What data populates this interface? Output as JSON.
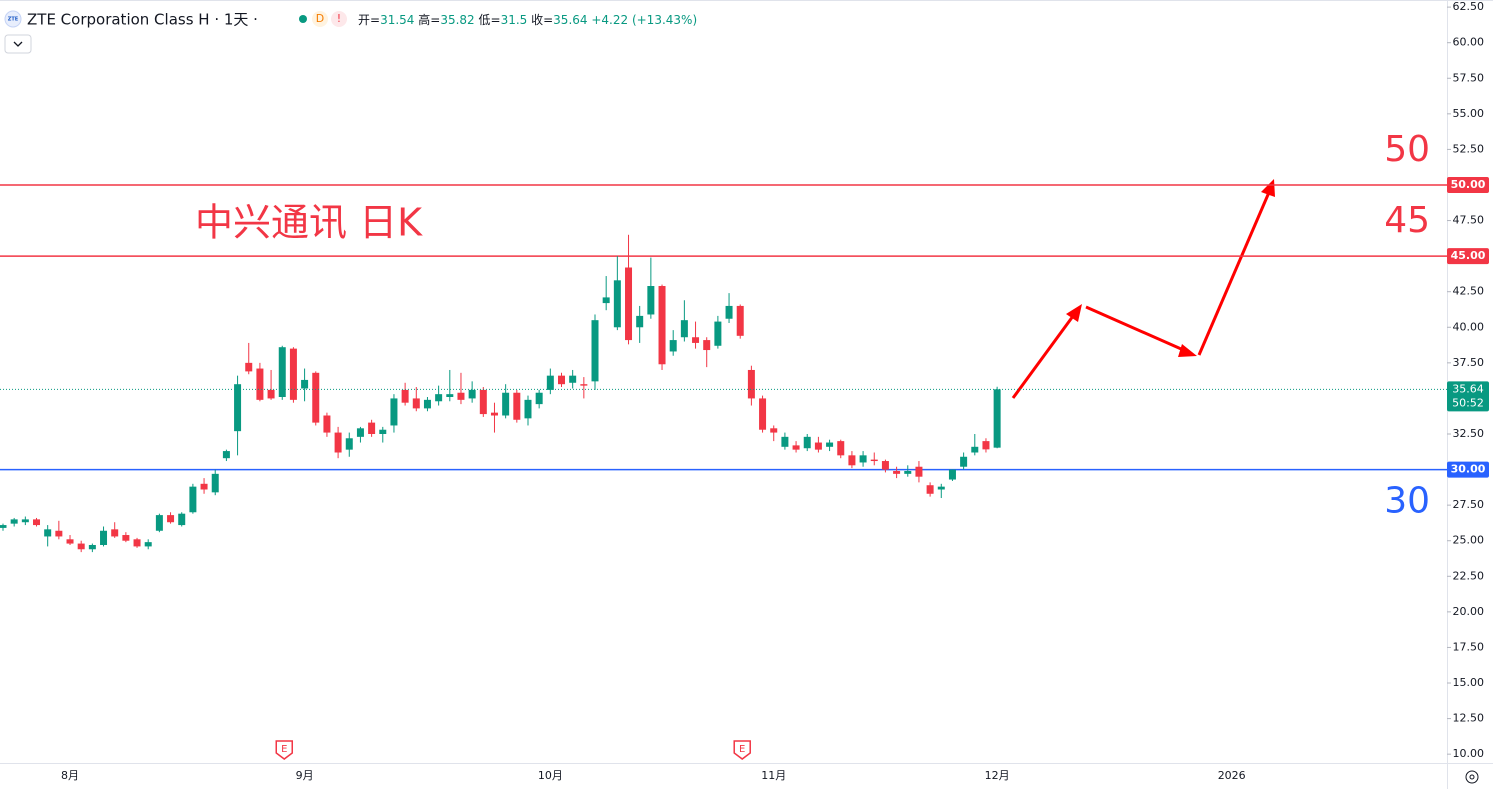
{
  "chart_data": {
    "type": "candlestick",
    "title": "中兴通讯 日K",
    "header": {
      "logo": "ZTE",
      "symbol": "ZTE Corporation Class H · 1天 ·",
      "badges": [
        "D",
        "!"
      ],
      "ohlc_labels": [
        "开=",
        "高=",
        "低=",
        "收="
      ],
      "change": "+4.22 (+13.43%)",
      "countdown": "50:52"
    },
    "categories": [
      null,
      null,
      null,
      null,
      null,
      null,
      "8月",
      null,
      null,
      null,
      null,
      null,
      null,
      null,
      null,
      null,
      null,
      null,
      null,
      null,
      null,
      null,
      null,
      null,
      null,
      null,
      null,
      "9月",
      null,
      null,
      null,
      null,
      null,
      null,
      null,
      null,
      null,
      null,
      null,
      null,
      null,
      null,
      null,
      null,
      null,
      null,
      null,
      null,
      null,
      "10月",
      null,
      null,
      null,
      null,
      null,
      null,
      null,
      null,
      null,
      null,
      null,
      null,
      null,
      null,
      null,
      null,
      null,
      null,
      null,
      "11月",
      null,
      null,
      null,
      null,
      null,
      null,
      null,
      null,
      null,
      null,
      null,
      null,
      null,
      null,
      null,
      null,
      null,
      null,
      null,
      "12月",
      null,
      null,
      null,
      null,
      null,
      null,
      null,
      null,
      null,
      null,
      null,
      null,
      null,
      null,
      null,
      null,
      null,
      null,
      null,
      null,
      "2026"
    ],
    "open": [
      25.9,
      26.2,
      26.3,
      26.5,
      25.3,
      25.7,
      25.1,
      24.8,
      24.4,
      24.7,
      25.8,
      25.4,
      25.1,
      24.6,
      25.7,
      26.8,
      26.1,
      27.0,
      29.0,
      28.4,
      30.8,
      32.7,
      37.5,
      37.1,
      35.6,
      35.1,
      38.5,
      35.7,
      36.8,
      33.8,
      32.6,
      31.4,
      32.3,
      33.3,
      32.5,
      33.1,
      35.6,
      35.0,
      34.3,
      34.8,
      35.1,
      35.4,
      35.0,
      35.6,
      34.0,
      33.8,
      35.4,
      33.6,
      34.6,
      35.6,
      36.6,
      36.1,
      36.0,
      36.2,
      41.7,
      40.0,
      44.2,
      40.0,
      40.9,
      42.9,
      38.3,
      39.3,
      39.3,
      39.1,
      38.7,
      40.6,
      41.5,
      37.0,
      35.0,
      32.9,
      31.6,
      31.7,
      31.5,
      31.9,
      31.6,
      32.0,
      31.0,
      30.5,
      30.7,
      30.6,
      29.9,
      29.7,
      30.2,
      28.9,
      28.6,
      29.3,
      30.2,
      31.2,
      32.0,
      31.54,
      null,
      null,
      null,
      null,
      null,
      null,
      null,
      null,
      null,
      null,
      null,
      null,
      null,
      null,
      null,
      null,
      null,
      null,
      null,
      null,
      null
    ],
    "high": [
      26.2,
      26.6,
      26.7,
      26.6,
      26.1,
      26.4,
      25.4,
      25.0,
      24.8,
      26.0,
      26.3,
      25.6,
      25.2,
      25.1,
      26.9,
      27.0,
      27.0,
      29.0,
      29.4,
      30.0,
      31.4,
      36.6,
      38.9,
      37.5,
      37.0,
      38.7,
      38.6,
      37.1,
      36.9,
      34.0,
      33.0,
      32.6,
      33.0,
      33.5,
      33.0,
      35.3,
      36.1,
      35.8,
      35.1,
      35.9,
      37.0,
      36.8,
      36.2,
      35.8,
      34.7,
      36.0,
      35.6,
      35.2,
      35.6,
      37.1,
      36.8,
      37.0,
      36.5,
      40.9,
      43.6,
      45.0,
      46.5,
      41.5,
      44.9,
      43.0,
      39.8,
      41.9,
      40.4,
      39.3,
      40.8,
      42.4,
      41.6,
      37.3,
      35.2,
      33.1,
      32.6,
      32.0,
      32.5,
      32.3,
      32.1,
      32.1,
      31.3,
      31.3,
      31.2,
      30.7,
      30.2,
      30.3,
      30.6,
      29.1,
      29.0,
      30.0,
      31.2,
      32.5,
      32.2,
      35.82,
      null,
      null,
      null,
      null,
      null,
      null,
      null,
      null,
      null,
      null,
      null,
      null,
      null,
      null,
      null,
      null,
      null,
      null,
      null,
      null,
      null
    ],
    "low": [
      25.7,
      26.0,
      26.1,
      26.0,
      24.6,
      25.1,
      24.7,
      24.2,
      24.2,
      24.6,
      25.2,
      24.9,
      24.5,
      24.4,
      25.6,
      26.2,
      26.0,
      26.9,
      28.3,
      28.2,
      30.6,
      31.0,
      36.7,
      34.8,
      34.9,
      34.9,
      34.7,
      34.8,
      33.1,
      32.3,
      30.8,
      30.9,
      31.9,
      32.3,
      31.9,
      32.6,
      34.5,
      34.1,
      34.1,
      34.5,
      34.8,
      34.6,
      34.7,
      33.7,
      32.6,
      33.6,
      33.3,
      33.1,
      34.3,
      35.3,
      35.8,
      35.7,
      35.0,
      35.6,
      41.2,
      39.8,
      38.8,
      38.9,
      40.6,
      37.0,
      38.0,
      39.0,
      38.5,
      37.2,
      38.5,
      40.3,
      39.2,
      34.5,
      32.6,
      32.0,
      31.4,
      31.2,
      31.3,
      31.2,
      31.3,
      30.8,
      30.1,
      30.2,
      30.3,
      29.8,
      29.4,
      29.5,
      29.1,
      28.1,
      28.0,
      29.2,
      30.0,
      31.0,
      31.2,
      31.5,
      null,
      null,
      null,
      null,
      null,
      null,
      null,
      null,
      null,
      null,
      null,
      null,
      null,
      null,
      null,
      null,
      null,
      null,
      null,
      null,
      null
    ],
    "close": [
      26.1,
      26.5,
      26.5,
      26.1,
      25.8,
      25.3,
      24.8,
      24.4,
      24.7,
      25.7,
      25.3,
      25.0,
      24.6,
      24.9,
      26.8,
      26.3,
      26.9,
      28.8,
      28.6,
      29.7,
      31.3,
      36.0,
      36.9,
      34.9,
      35.0,
      38.6,
      34.9,
      36.3,
      33.3,
      32.6,
      31.2,
      32.2,
      32.9,
      32.5,
      32.8,
      35.0,
      34.7,
      34.3,
      34.9,
      35.3,
      35.3,
      34.9,
      35.6,
      33.9,
      33.8,
      35.4,
      33.5,
      34.9,
      35.4,
      36.6,
      36.0,
      36.6,
      35.9,
      40.5,
      42.1,
      43.3,
      39.1,
      40.8,
      42.9,
      37.4,
      39.1,
      40.5,
      38.9,
      38.4,
      40.4,
      41.5,
      39.4,
      35.0,
      32.8,
      32.6,
      32.3,
      31.4,
      32.3,
      31.4,
      31.9,
      31.0,
      30.3,
      31.0,
      30.6,
      30.0,
      29.7,
      29.9,
      29.5,
      28.3,
      28.8,
      30.0,
      30.9,
      31.6,
      31.42,
      35.64,
      null,
      null,
      null,
      null,
      null,
      null,
      null,
      null,
      null,
      null,
      null,
      null,
      null,
      null,
      null,
      null,
      null,
      null,
      null,
      null,
      null
    ],
    "up_color": "#089981",
    "down_color": "#f23645",
    "ylim": [
      9.4,
      63
    ],
    "yticks": [
      {
        "value": 10,
        "label": "10.00"
      },
      {
        "value": 12.5,
        "label": "12.50"
      },
      {
        "value": 15,
        "label": "15.00"
      },
      {
        "value": 17.5,
        "label": "17.50"
      },
      {
        "value": 20,
        "label": "20.00"
      },
      {
        "value": 22.5,
        "label": "22.50"
      },
      {
        "value": 25,
        "label": "25.00"
      },
      {
        "value": 27.5,
        "label": "27.50"
      },
      {
        "value": 30,
        "label": "30.00"
      },
      {
        "value": 32.5,
        "label": "32.50"
      },
      {
        "value": 35,
        "label": "35.00"
      },
      {
        "value": 37.5,
        "label": "37.50"
      },
      {
        "value": 40,
        "label": "40.00"
      },
      {
        "value": 42.5,
        "label": "42.50"
      },
      {
        "value": 45,
        "label": "45.00"
      },
      {
        "value": 47.5,
        "label": "47.50"
      },
      {
        "value": 50,
        "label": "50.00"
      },
      {
        "value": 52.5,
        "label": "52.50"
      },
      {
        "value": 55,
        "label": "55.00"
      },
      {
        "value": 57.5,
        "label": "57.50"
      },
      {
        "value": 60,
        "label": "60.00"
      },
      {
        "value": 62.5,
        "label": "62.50"
      }
    ],
    "hlines": [
      {
        "value": 50,
        "label": "50.00",
        "note": "50",
        "color": "#f23645"
      },
      {
        "value": 45,
        "label": "45.00",
        "note": "45",
        "color": "#f23645"
      },
      {
        "value": 30,
        "label": "30.00",
        "note": "30",
        "color": "#2962ff"
      }
    ],
    "earnings": [
      "E",
      "E"
    ]
  }
}
